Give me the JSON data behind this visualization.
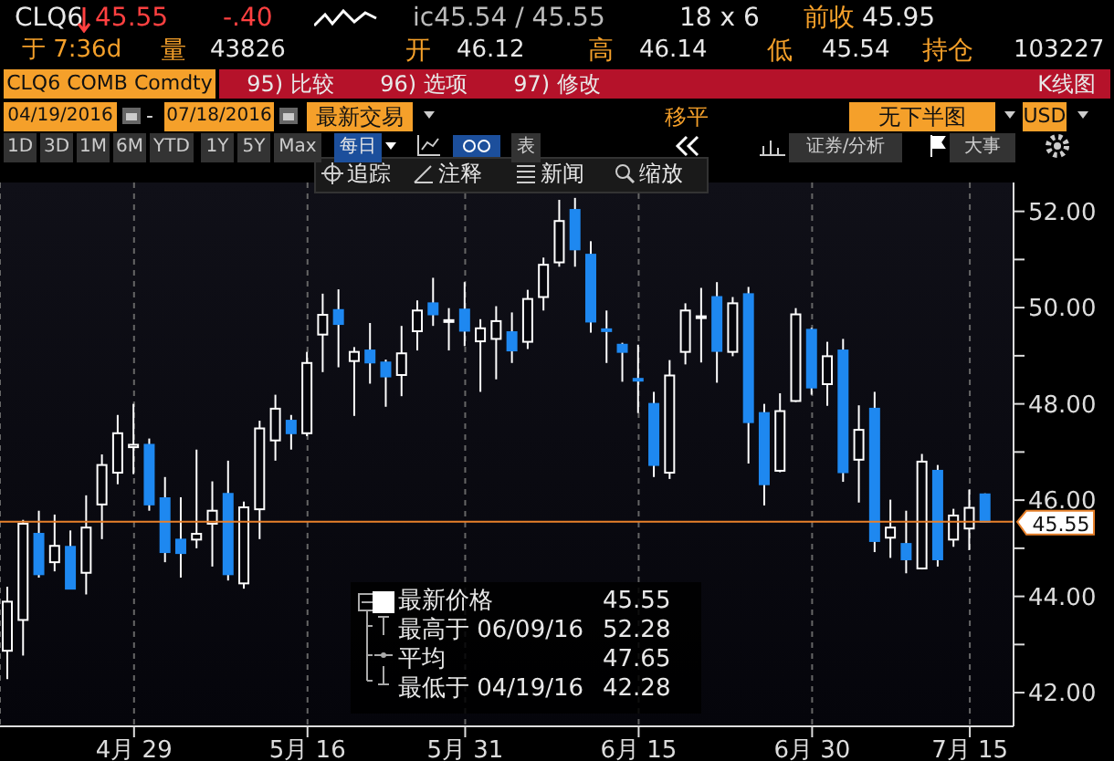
{
  "chart_data": {
    "type": "candlestick",
    "categories": [
      null,
      null,
      null,
      null,
      null,
      null,
      null,
      null,
      "4月 29",
      null,
      null,
      null,
      null,
      null,
      null,
      null,
      null,
      null,
      null,
      "5月 16",
      null,
      null,
      null,
      null,
      null,
      null,
      null,
      null,
      null,
      "5月 31",
      null,
      null,
      null,
      null,
      null,
      null,
      null,
      null,
      null,
      null,
      "6月 15",
      null,
      null,
      null,
      null,
      null,
      null,
      null,
      null,
      null,
      null,
      "6月 30",
      null,
      null,
      null,
      null,
      null,
      null,
      null,
      null,
      null,
      "7月 15",
      null
    ],
    "ohlc": [
      [
        42.87,
        44.2,
        42.28,
        43.89
      ],
      [
        43.51,
        45.59,
        42.77,
        45.51
      ],
      [
        45.3,
        45.78,
        44.39,
        44.46
      ],
      [
        44.71,
        45.7,
        44.52,
        45.05
      ],
      [
        45.03,
        45.37,
        44.16,
        44.16
      ],
      [
        44.49,
        46.1,
        44.04,
        45.43
      ],
      [
        45.91,
        46.95,
        45.19,
        46.73
      ],
      [
        46.57,
        47.77,
        46.33,
        47.39
      ],
      [
        47.1,
        48.0,
        46.54,
        47.15
      ],
      [
        47.15,
        47.28,
        45.78,
        45.91
      ],
      [
        46.04,
        46.48,
        44.71,
        44.92
      ],
      [
        45.18,
        46.06,
        44.39,
        44.9
      ],
      [
        45.18,
        47.05,
        45.0,
        45.3
      ],
      [
        45.51,
        46.39,
        44.62,
        45.78
      ],
      [
        46.13,
        46.82,
        44.33,
        44.46
      ],
      [
        44.27,
        45.97,
        44.16,
        45.85
      ],
      [
        45.81,
        47.65,
        45.19,
        47.49
      ],
      [
        47.24,
        48.19,
        46.82,
        47.9
      ],
      [
        47.65,
        47.77,
        47.05,
        47.39
      ],
      [
        47.39,
        49.08,
        47.33,
        48.85
      ],
      [
        49.44,
        50.29,
        48.66,
        49.85
      ],
      [
        49.95,
        50.38,
        48.76,
        49.66
      ],
      [
        48.89,
        49.18,
        47.75,
        49.08
      ],
      [
        49.11,
        49.68,
        48.42,
        48.86
      ],
      [
        48.86,
        48.92,
        47.94,
        48.57
      ],
      [
        48.6,
        49.62,
        48.16,
        49.05
      ],
      [
        49.51,
        50.15,
        49.11,
        49.94
      ],
      [
        50.09,
        50.62,
        49.62,
        49.86
      ],
      [
        49.72,
        49.99,
        49.11,
        49.74
      ],
      [
        49.96,
        50.53,
        49.2,
        49.52
      ],
      [
        49.3,
        49.76,
        48.25,
        49.57
      ],
      [
        49.35,
        50.03,
        48.51,
        49.72
      ],
      [
        49.49,
        49.9,
        48.85,
        49.11
      ],
      [
        49.29,
        50.37,
        49.14,
        50.18
      ],
      [
        50.22,
        51.04,
        49.94,
        50.89
      ],
      [
        50.94,
        52.24,
        50.85,
        51.8
      ],
      [
        52.03,
        52.28,
        50.85,
        51.21
      ],
      [
        51.1,
        51.38,
        49.48,
        49.71
      ],
      [
        49.55,
        49.94,
        48.85,
        49.53
      ],
      [
        49.23,
        49.27,
        48.46,
        49.08
      ],
      [
        48.52,
        49.23,
        47.81,
        48.49
      ],
      [
        48.0,
        48.25,
        46.48,
        46.73
      ],
      [
        46.57,
        48.91,
        46.44,
        48.59
      ],
      [
        49.08,
        50.09,
        48.82,
        49.94
      ],
      [
        49.8,
        50.41,
        48.86,
        49.82
      ],
      [
        50.22,
        50.53,
        48.44,
        49.1
      ],
      [
        49.08,
        50.22,
        48.99,
        50.09
      ],
      [
        50.28,
        50.43,
        46.76,
        47.62
      ],
      [
        47.81,
        48.0,
        45.89,
        46.33
      ],
      [
        46.61,
        48.22,
        46.58,
        47.85
      ],
      [
        48.06,
        49.99,
        48.04,
        49.86
      ],
      [
        49.54,
        49.58,
        48.19,
        48.34
      ],
      [
        48.41,
        49.29,
        47.96,
        48.99
      ],
      [
        49.11,
        49.35,
        46.38,
        46.58
      ],
      [
        46.84,
        47.97,
        45.95,
        47.46
      ],
      [
        47.9,
        48.25,
        44.92,
        45.15
      ],
      [
        45.22,
        46.01,
        44.8,
        45.43
      ],
      [
        45.09,
        45.78,
        44.48,
        44.77
      ],
      [
        44.58,
        46.96,
        44.56,
        46.8
      ],
      [
        46.61,
        46.73,
        44.62,
        44.77
      ],
      [
        45.18,
        45.82,
        45.03,
        45.68
      ],
      [
        45.41,
        46.22,
        44.96,
        45.84
      ],
      [
        46.12,
        46.14,
        45.54,
        45.55
      ]
    ],
    "colors": [
      "#ffffff",
      "#ffffff",
      "#1e88f0",
      "#ffffff",
      "#1e88f0",
      "#ffffff",
      "#ffffff",
      "#ffffff",
      "#ffffff",
      "#1e88f0",
      "#1e88f0",
      "#1e88f0",
      "#ffffff",
      "#ffffff",
      "#1e88f0",
      "#ffffff",
      "#ffffff",
      "#ffffff",
      "#1e88f0",
      "#ffffff",
      "#ffffff",
      "#1e88f0",
      "#ffffff",
      "#1e88f0",
      "#1e88f0",
      "#ffffff",
      "#ffffff",
      "#1e88f0",
      "#ffffff",
      "#1e88f0",
      "#ffffff",
      "#ffffff",
      "#1e88f0",
      "#ffffff",
      "#ffffff",
      "#ffffff",
      "#1e88f0",
      "#1e88f0",
      "#1e88f0",
      "#1e88f0",
      "#1e88f0",
      "#1e88f0",
      "#ffffff",
      "#ffffff",
      "#ffffff",
      "#1e88f0",
      "#ffffff",
      "#1e88f0",
      "#1e88f0",
      "#ffffff",
      "#ffffff",
      "#1e88f0",
      "#ffffff",
      "#1e88f0",
      "#ffffff",
      "#1e88f0",
      "#ffffff",
      "#1e88f0",
      "#ffffff",
      "#1e88f0",
      "#ffffff",
      "#ffffff",
      "#1e88f0"
    ],
    "ylim": [
      41.3,
      52.6
    ],
    "yticks": [
      {
        "value": 42,
        "label": "42.00"
      },
      {
        "value": 43,
        "label": null
      },
      {
        "value": 44,
        "label": "44.00"
      },
      {
        "value": 45,
        "label": null
      },
      {
        "value": 46,
        "label": "46.00"
      },
      {
        "value": 47,
        "label": null
      },
      {
        "value": 48,
        "label": "48.00"
      },
      {
        "value": 49,
        "label": null
      },
      {
        "value": 50,
        "label": "50.00"
      },
      {
        "value": 51,
        "label": null
      },
      {
        "value": 52,
        "label": "52.00"
      }
    ],
    "grid": true,
    "ref_lines": [
      {
        "axis": "y",
        "value": 45.55,
        "label": "45.55",
        "color": "#e8812b"
      }
    ],
    "annotations": [
      "CLQ6",
      "45.55",
      "-.40",
      "ic45.54 / 45.55",
      "18 x 6",
      "前收",
      "45.95",
      "于 7:36d",
      "量",
      "43826",
      "开",
      "46.12",
      "高",
      "46.14",
      "低",
      "45.54",
      "持仓",
      "103227",
      "CLQ6 COMB Comdty",
      "95) 比较",
      "96) 选项",
      "97) 修改",
      "K线图",
      "04/19/2016",
      "-",
      "07/18/2016",
      "最新交易",
      "移平",
      "无下半图",
      "USD",
      "1D",
      "3D",
      "1M",
      "6M",
      "YTD",
      "1Y",
      "5Y",
      "Max",
      "每日",
      "表",
      "证券/分析",
      "大事",
      "追踪",
      "注释",
      "新闻",
      "缩放",
      "最新价格",
      "45.55",
      "最高于 06/09/16",
      "52.28",
      "平均",
      "47.65",
      "最低于 04/19/16",
      "42.28"
    ]
  }
}
